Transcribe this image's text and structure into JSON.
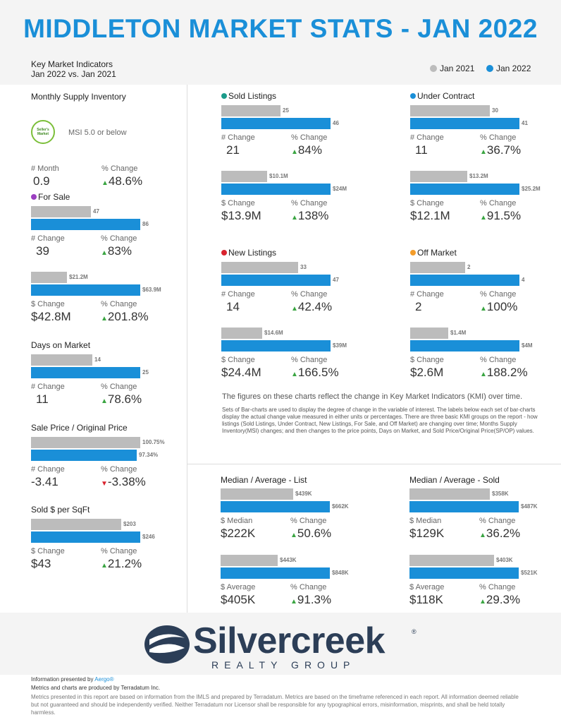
{
  "title": "MIDDLETON MARKET STATS - JAN 2022",
  "kmi": {
    "line1": "Key Market Indicators",
    "line2": "Jan 2022 vs. Jan 2021"
  },
  "legend": {
    "jan2021": "Jan 2021",
    "jan2022": "Jan 2022",
    "gray": "#bcbcbc",
    "blue": "#1a8fd8"
  },
  "msi": {
    "title": "Monthly Supply Inventory",
    "badge": "Seller's Market",
    "desc": "MSI 5.0 or below",
    "lbl1": "# Month",
    "val1": "0.9",
    "lbl2": "% Change",
    "val2": "48.6%"
  },
  "for_sale": {
    "title": "For Sale",
    "dot": "#9b3fc0",
    "a": {
      "g": "47",
      "b": "86",
      "gv": 47,
      "bv": 86,
      "l1": "# Change",
      "v1": "39",
      "l2": "% Change",
      "v2": "83%"
    },
    "c": {
      "g": "$21.2M",
      "b": "$63.9M",
      "gv": 21.2,
      "bv": 63.9,
      "l1": "$ Change",
      "v1": "$42.8M",
      "l2": "% Change",
      "v2": "201.8%"
    }
  },
  "days": {
    "title": "Days on Market",
    "g": "14",
    "b": "25",
    "gv": 14,
    "bv": 25,
    "l1": "# Change",
    "v1": "11",
    "l2": "% Change",
    "v2": "78.6%"
  },
  "spop": {
    "title": "Sale Price / Original Price",
    "g": "100.75%",
    "b": "97.34%",
    "gv": 100.75,
    "bv": 97.34,
    "l1": "# Change",
    "v1": "-3.41",
    "l2": "% Change",
    "v2": "-3.38%"
  },
  "sqft": {
    "title": "Sold $ per SqFt",
    "g": "$203",
    "b": "$246",
    "gv": 203,
    "bv": 246,
    "l1": "$ Change",
    "v1": "$43",
    "l2": "% Change",
    "v2": "21.2%"
  },
  "sold": {
    "title": "Sold Listings",
    "dot": "#1a9b8a",
    "a": {
      "g": "25",
      "b": "46",
      "gv": 25,
      "bv": 46,
      "l1": "# Change",
      "v1": "21",
      "l2": "% Change",
      "v2": "84%"
    },
    "c": {
      "g": "$10.1M",
      "b": "$24M",
      "gv": 10.1,
      "bv": 24,
      "l1": "$ Change",
      "v1": "$13.9M",
      "l2": "% Change",
      "v2": "138%"
    }
  },
  "under": {
    "title": "Under Contract",
    "dot": "#1a8fd8",
    "a": {
      "g": "30",
      "b": "41",
      "gv": 30,
      "bv": 41,
      "l1": "# Change",
      "v1": "11",
      "l2": "% Change",
      "v2": "36.7%"
    },
    "c": {
      "g": "$13.2M",
      "b": "$25.2M",
      "gv": 13.2,
      "bv": 25.2,
      "l1": "$ Change",
      "v1": "$12.1M",
      "l2": "% Change",
      "v2": "91.5%"
    }
  },
  "newl": {
    "title": "New Listings",
    "dot": "#d9232e",
    "a": {
      "g": "33",
      "b": "47",
      "gv": 33,
      "bv": 47,
      "l1": "# Change",
      "v1": "14",
      "l2": "% Change",
      "v2": "42.4%"
    },
    "c": {
      "g": "$14.6M",
      "b": "$39M",
      "gv": 14.6,
      "bv": 39,
      "l1": "$ Change",
      "v1": "$24.4M",
      "l2": "% Change",
      "v2": "166.5%"
    }
  },
  "offm": {
    "title": "Off Market",
    "dot": "#f39c2a",
    "a": {
      "g": "2",
      "b": "4",
      "gv": 2,
      "bv": 4,
      "l1": "# Change",
      "v1": "2",
      "l2": "% Change",
      "v2": "100%"
    },
    "c": {
      "g": "$1.4M",
      "b": "$4M",
      "gv": 1.4,
      "bv": 4,
      "l1": "$ Change",
      "v1": "$2.6M",
      "l2": "% Change",
      "v2": "188.2%"
    }
  },
  "note1": "The figures on these charts reflect the change in Key Market Indicators (KMI) over time.",
  "note2": "Sets of Bar-charts are used to display the degree of change in the variable of interest. The labels below each set of bar-charts display the actual change value measured in either units or percentages. There are three basic KMI groups on the report - how listings (Sold Listings, Under Contract, New Listings, For Sale, and Off Market) are changing over time; Months Supply Inventory(MSI) changes; and then changes to the price points, Days on Market, and Sold Price/Original Price(SP/OP) values.",
  "mlist": {
    "title": "Median / Average - List",
    "a": {
      "g": "$439K",
      "b": "$662K",
      "gv": 439,
      "bv": 662,
      "l1": "$ Median",
      "v1": "$222K",
      "l2": "% Change",
      "v2": "50.6%"
    },
    "c": {
      "g": "$443K",
      "b": "$848K",
      "gv": 443,
      "bv": 848,
      "l1": "$ Average",
      "v1": "$405K",
      "l2": "% Change",
      "v2": "91.3%"
    }
  },
  "msold": {
    "title": "Median / Average - Sold",
    "a": {
      "g": "$358K",
      "b": "$487K",
      "gv": 358,
      "bv": 487,
      "l1": "$ Median",
      "v1": "$129K",
      "l2": "% Change",
      "v2": "36.2%"
    },
    "c": {
      "g": "$403K",
      "b": "$521K",
      "gv": 403,
      "bv": 521,
      "l1": "$ Average",
      "v1": "$118K",
      "l2": "% Change",
      "v2": "29.3%"
    }
  },
  "logo": {
    "name": "Silvercreek",
    "sub": "REALTY GROUP",
    "reg": "®"
  },
  "footer": {
    "presented": "Information presented by",
    "presented_by": "Aergo®",
    "produced": "Metrics and charts are produced by Terradatum Inc.",
    "disclaimer": "Metrics presented in this report are based on information from the IMLS and prepared by Terradatum. Metrics are based on the timeframe referenced in each report. All information deemed reliable but not guaranteed and should be independently verified. Neither Terradatum nor Licensor shall be responsible for any typographical errors, misinformation, misprints, and shall be held totally harmless."
  }
}
